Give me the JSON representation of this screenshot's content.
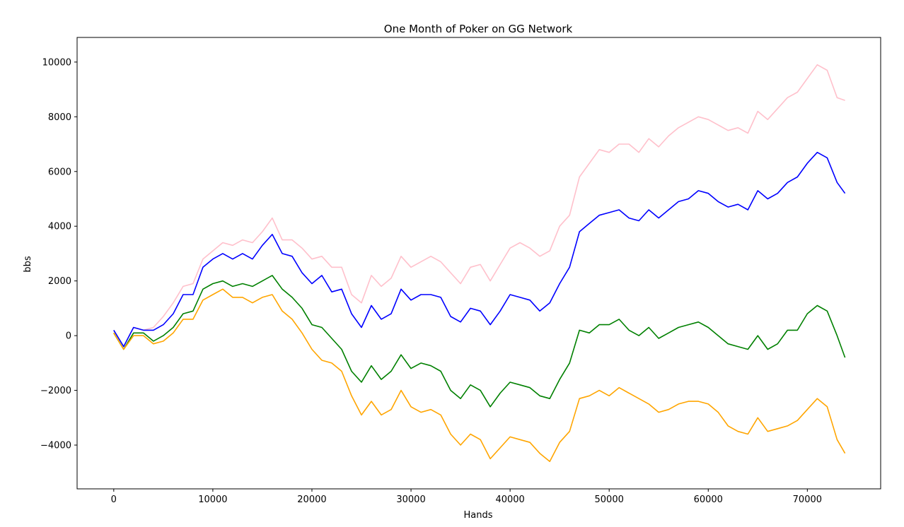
{
  "chart_data": {
    "type": "line",
    "title": "One Month of Poker on GG Network",
    "xlabel": "Hands",
    "ylabel": "bbs",
    "xlim": [
      -3700,
      77400
    ],
    "ylim": [
      -5600,
      10900
    ],
    "x_ticks": [
      0,
      10000,
      20000,
      30000,
      40000,
      50000,
      60000,
      70000
    ],
    "x_tick_labels": [
      "0",
      "10000",
      "20000",
      "30000",
      "40000",
      "50000",
      "60000",
      "70000"
    ],
    "y_ticks": [
      -4000,
      -2000,
      0,
      2000,
      4000,
      6000,
      8000,
      10000
    ],
    "y_tick_labels": [
      "−4000",
      "−2000",
      "0",
      "2000",
      "4000",
      "6000",
      "8000",
      "10000"
    ],
    "grid": false,
    "legend": "none",
    "x": [
      0,
      1000,
      2000,
      3000,
      4000,
      5000,
      6000,
      7000,
      8000,
      9000,
      10000,
      11000,
      12000,
      13000,
      14000,
      15000,
      16000,
      17000,
      18000,
      19000,
      20000,
      21000,
      22000,
      23000,
      24000,
      25000,
      26000,
      27000,
      28000,
      29000,
      30000,
      31000,
      32000,
      33000,
      34000,
      35000,
      36000,
      37000,
      38000,
      39000,
      40000,
      41000,
      42000,
      43000,
      44000,
      45000,
      46000,
      47000,
      48000,
      49000,
      50000,
      51000,
      52000,
      53000,
      54000,
      55000,
      56000,
      57000,
      58000,
      59000,
      60000,
      61000,
      62000,
      63000,
      64000,
      65000,
      66000,
      67000,
      68000,
      69000,
      70000,
      71000,
      72000,
      73000,
      73800
    ],
    "series": [
      {
        "color": "#ffc0cb",
        "values": [
          200,
          -400,
          300,
          200,
          300,
          700,
          1200,
          1800,
          1900,
          2800,
          3100,
          3400,
          3300,
          3500,
          3400,
          3800,
          4300,
          3500,
          3500,
          3200,
          2800,
          2900,
          2500,
          2500,
          1500,
          1200,
          2200,
          1800,
          2100,
          2900,
          2500,
          2700,
          2900,
          2700,
          2300,
          1900,
          2500,
          2600,
          2000,
          2600,
          3200,
          3400,
          3200,
          2900,
          3100,
          4000,
          4400,
          5800,
          6300,
          6800,
          6700,
          7000,
          7000,
          6700,
          7200,
          6900,
          7300,
          7600,
          7800,
          8000,
          7900,
          7700,
          7500,
          7600,
          7400,
          8200,
          7900,
          8300,
          8700,
          8900,
          9400,
          9900,
          9700,
          8700,
          8600
        ]
      },
      {
        "color": "#0000ff",
        "values": [
          200,
          -400,
          300,
          200,
          200,
          400,
          800,
          1500,
          1500,
          2500,
          2800,
          3000,
          2800,
          3000,
          2800,
          3300,
          3700,
          3000,
          2900,
          2300,
          1900,
          2200,
          1600,
          1700,
          800,
          300,
          1100,
          600,
          800,
          1700,
          1300,
          1500,
          1500,
          1400,
          700,
          500,
          1000,
          900,
          400,
          900,
          1500,
          1400,
          1300,
          900,
          1200,
          1900,
          2500,
          3800,
          4100,
          4400,
          4500,
          4600,
          4300,
          4200,
          4600,
          4300,
          4600,
          4900,
          5000,
          5300,
          5200,
          4900,
          4700,
          4800,
          4600,
          5300,
          5000,
          5200,
          5600,
          5800,
          6300,
          6700,
          6500,
          5600,
          5200
        ]
      },
      {
        "color": "#008000",
        "values": [
          100,
          -500,
          100,
          100,
          -200,
          0,
          300,
          800,
          900,
          1700,
          1900,
          2000,
          1800,
          1900,
          1800,
          2000,
          2200,
          1700,
          1400,
          1000,
          400,
          300,
          -100,
          -500,
          -1300,
          -1700,
          -1100,
          -1600,
          -1300,
          -700,
          -1200,
          -1000,
          -1100,
          -1300,
          -2000,
          -2300,
          -1800,
          -2000,
          -2600,
          -2100,
          -1700,
          -1800,
          -1900,
          -2200,
          -2300,
          -1600,
          -1000,
          200,
          100,
          400,
          400,
          600,
          200,
          0,
          300,
          -100,
          100,
          300,
          400,
          500,
          300,
          0,
          -300,
          -400,
          -500,
          0,
          -500,
          -300,
          200,
          200,
          800,
          1100,
          900,
          0,
          -800
        ]
      },
      {
        "color": "#ffa500",
        "values": [
          100,
          -500,
          0,
          0,
          -300,
          -200,
          100,
          600,
          600,
          1300,
          1500,
          1700,
          1400,
          1400,
          1200,
          1400,
          1500,
          900,
          600,
          100,
          -500,
          -900,
          -1000,
          -1300,
          -2200,
          -2900,
          -2400,
          -2900,
          -2700,
          -2000,
          -2600,
          -2800,
          -2700,
          -2900,
          -3600,
          -4000,
          -3600,
          -3800,
          -4500,
          -4100,
          -3700,
          -3800,
          -3900,
          -4300,
          -4600,
          -3900,
          -3500,
          -2300,
          -2200,
          -2000,
          -2200,
          -1900,
          -2100,
          -2300,
          -2500,
          -2800,
          -2700,
          -2500,
          -2400,
          -2400,
          -2500,
          -2800,
          -3300,
          -3500,
          -3600,
          -3000,
          -3500,
          -3400,
          -3300,
          -3100,
          -2700,
          -2300,
          -2600,
          -3800,
          -4300
        ]
      }
    ]
  }
}
